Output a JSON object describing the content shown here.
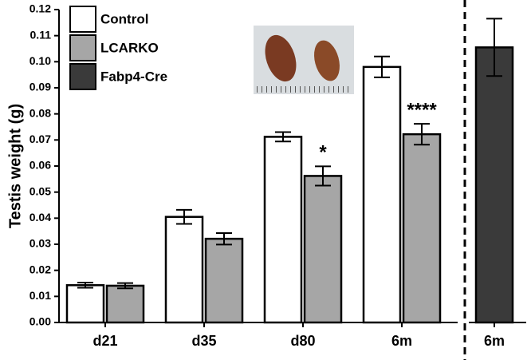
{
  "chart_data": [
    {
      "type": "bar",
      "y_label": "Testis weight (g)",
      "categories": [
        "d21",
        "d35",
        "d80",
        "6m"
      ],
      "series": [
        {
          "name": "Control",
          "color": "#ffffff",
          "values": [
            0.0143,
            0.0405,
            0.0712,
            0.098
          ],
          "errors": [
            0.001,
            0.0027,
            0.0018,
            0.004
          ]
        },
        {
          "name": "LCARKO",
          "color": "#a6a6a6",
          "values": [
            0.0141,
            0.0321,
            0.0562,
            0.0722
          ],
          "errors": [
            0.001,
            0.0022,
            0.0037,
            0.004
          ]
        }
      ],
      "annotations": [
        {
          "text": "*",
          "category": "d80",
          "series": "LCARKO"
        },
        {
          "text": "****",
          "category": "6m",
          "series": "LCARKO"
        }
      ],
      "ylim": [
        0,
        0.12
      ],
      "yticks": [
        {
          "value": 0,
          "label": "0.00"
        },
        0.01,
        0.02,
        0.03,
        0.04,
        0.05,
        0.06,
        0.07,
        0.08,
        0.09,
        {
          "value": 0.1,
          "label": "0.10"
        },
        0.11,
        0.12
      ]
    },
    {
      "type": "bar",
      "categories": [
        "6m"
      ],
      "series": [
        {
          "name": "Fabp4-Cre",
          "color": "#3a3a3a",
          "values": [
            0.1055
          ],
          "errors": [
            0.011
          ]
        }
      ],
      "ylim": [
        0,
        0.12
      ]
    }
  ]
}
